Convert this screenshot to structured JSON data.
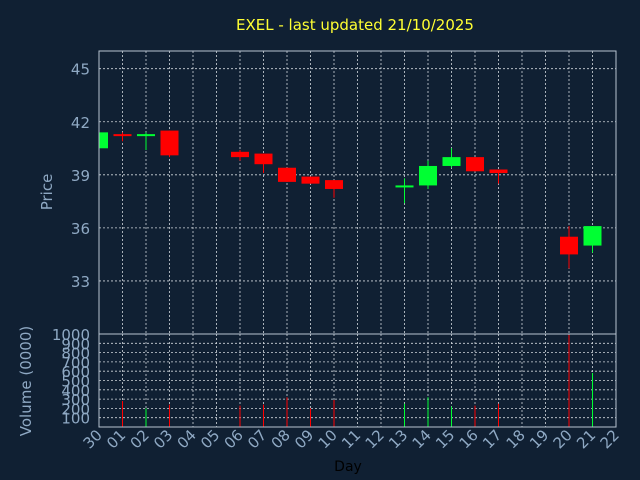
{
  "chart_data": [
    {
      "type": "candlestick",
      "title": "EXEL - last updated 21/10/2025",
      "ylabel": "Price",
      "ylim": [
        30,
        46
      ],
      "yticks": [
        33,
        36,
        39,
        42,
        45
      ],
      "grid": true,
      "colors": {
        "up": "#00ff33",
        "down": "#ff0000"
      },
      "candles": [
        {
          "x": "30",
          "open": 40.5,
          "high": 41.4,
          "low": 40.5,
          "close": 41.4
        },
        {
          "x": "01",
          "open": 41.3,
          "high": 41.4,
          "low": 40.9,
          "close": 41.2
        },
        {
          "x": "02",
          "open": 41.2,
          "high": 41.4,
          "low": 40.4,
          "close": 41.3
        },
        {
          "x": "03",
          "open": 41.5,
          "high": 41.5,
          "low": 40.0,
          "close": 40.1
        },
        {
          "x": "06",
          "open": 40.3,
          "high": 40.4,
          "low": 39.8,
          "close": 40.0
        },
        {
          "x": "07",
          "open": 40.2,
          "high": 40.2,
          "low": 39.1,
          "close": 39.6
        },
        {
          "x": "08",
          "open": 39.4,
          "high": 39.4,
          "low": 38.6,
          "close": 38.6
        },
        {
          "x": "09",
          "open": 38.9,
          "high": 38.9,
          "low": 38.5,
          "close": 38.5
        },
        {
          "x": "10",
          "open": 38.7,
          "high": 38.7,
          "low": 37.7,
          "close": 38.2
        },
        {
          "x": "13",
          "open": 38.3,
          "high": 38.8,
          "low": 37.4,
          "close": 38.4
        },
        {
          "x": "14",
          "open": 38.4,
          "high": 39.8,
          "low": 38.2,
          "close": 39.5
        },
        {
          "x": "15",
          "open": 39.5,
          "high": 40.5,
          "low": 39.4,
          "close": 40.0
        },
        {
          "x": "16",
          "open": 40.0,
          "high": 40.0,
          "low": 39.2,
          "close": 39.2
        },
        {
          "x": "17",
          "open": 39.3,
          "high": 39.3,
          "low": 38.5,
          "close": 39.1
        },
        {
          "x": "20",
          "open": 35.5,
          "high": 36.1,
          "low": 33.7,
          "close": 34.5
        },
        {
          "x": "21",
          "open": 35.0,
          "high": 36.1,
          "low": 34.6,
          "close": 36.1
        }
      ]
    },
    {
      "type": "bar",
      "ylabel": "Volume (0000)",
      "xlabel": "Day",
      "ylim": [
        0,
        1000
      ],
      "yticks": [
        100,
        200,
        300,
        400,
        500,
        600,
        700,
        800,
        900,
        1000
      ],
      "categories": [
        "30",
        "01",
        "02",
        "03",
        "04",
        "05",
        "06",
        "07",
        "08",
        "09",
        "10",
        "11",
        "12",
        "13",
        "14",
        "15",
        "16",
        "17",
        "18",
        "19",
        "20",
        "21",
        "22"
      ],
      "values": [
        0,
        280,
        200,
        240,
        0,
        0,
        230,
        240,
        320,
        200,
        290,
        0,
        0,
        250,
        320,
        220,
        230,
        250,
        0,
        0,
        990,
        580,
        0
      ],
      "directions": [
        "",
        "down",
        "up",
        "down",
        "",
        "",
        "down",
        "down",
        "down",
        "down",
        "down",
        "",
        "",
        "up",
        "up",
        "up",
        "down",
        "down",
        "",
        "",
        "down",
        "up",
        ""
      ]
    }
  ]
}
